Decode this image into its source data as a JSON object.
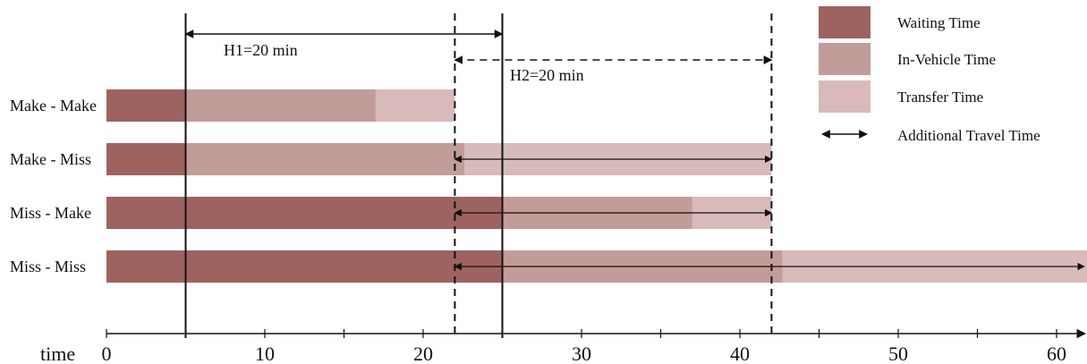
{
  "chart_data": {
    "type": "bar",
    "orientation": "horizontal",
    "stacked": true,
    "categories": [
      "Make - Make",
      "Make - Miss",
      "Miss - Make",
      "Miss - Miss"
    ],
    "series": [
      {
        "name": "Waiting Time",
        "color": "#9E6360",
        "values": [
          [
            [
              0,
              5
            ]
          ],
          [
            [
              0,
              5
            ]
          ],
          [
            [
              0,
              25
            ]
          ],
          [
            [
              0,
              25
            ]
          ]
        ]
      },
      {
        "name": "In-Vehicle Time",
        "color": "#C29C98",
        "values": [
          [
            [
              5,
              17
            ]
          ],
          [
            [
              5,
              22.6
            ]
          ],
          [
            [
              25,
              37
            ]
          ],
          [
            [
              25,
              42.7
            ]
          ]
        ]
      },
      {
        "name": "Transfer Time",
        "color": "#D8BABA",
        "values": [
          [
            [
              17,
              22
            ]
          ],
          [
            [
              22.6,
              42
            ]
          ],
          [
            [
              37,
              42
            ]
          ],
          [
            [
              42.7,
              62
            ]
          ]
        ]
      }
    ],
    "additional_travel_time": [
      {
        "category": "Make - Miss",
        "from": 22,
        "to": 42
      },
      {
        "category": "Miss - Make",
        "from": 22,
        "to": 42
      },
      {
        "category": "Miss - Miss",
        "from": 22,
        "to": 62
      }
    ],
    "vertical_lines": [
      {
        "x": 5,
        "style": "solid"
      },
      {
        "x": 25,
        "style": "solid"
      },
      {
        "x": 22,
        "style": "dashed"
      },
      {
        "x": 42,
        "style": "dashed"
      }
    ],
    "headway_annotations": [
      {
        "label": "H1=20 min",
        "from": 5,
        "to": 25,
        "style": "solid"
      },
      {
        "label": "H2=20 min",
        "from": 22,
        "to": 42,
        "style": "dashed"
      }
    ],
    "legend": {
      "position": "top-right",
      "items": [
        {
          "label": "Waiting Time",
          "kind": "swatch",
          "color": "#9E6360"
        },
        {
          "label": "In-Vehicle Time",
          "kind": "swatch",
          "color": "#C29C98"
        },
        {
          "label": "Transfer Time",
          "kind": "swatch",
          "color": "#D8BABA"
        },
        {
          "label": "Additional Travel Time",
          "kind": "double-arrow"
        }
      ]
    },
    "xaxis": {
      "label": "time",
      "ticks": [
        0,
        10,
        20,
        30,
        40,
        50,
        60
      ],
      "minor_tick_step": 5,
      "range": [
        0,
        62
      ]
    },
    "grid": false
  }
}
